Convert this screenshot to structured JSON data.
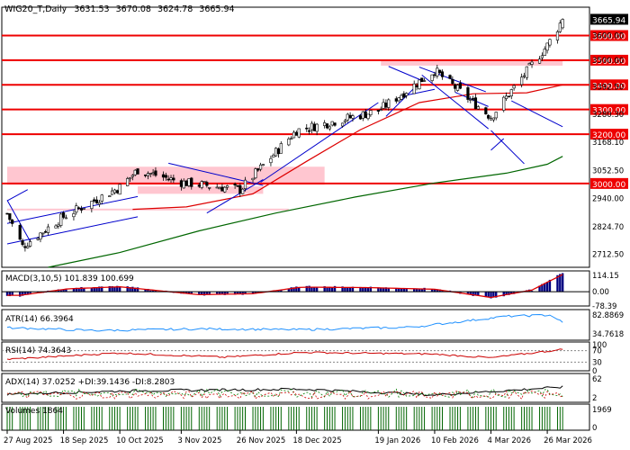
{
  "header": {
    "symbol": "WIG20_T",
    "timeframe": "Daily",
    "ohlc": [
      "3631.53",
      "3670.08",
      "3624.78",
      "3665.94"
    ]
  },
  "colors": {
    "grid": "#dddddd",
    "level_line": "#ee0000",
    "level_label_bg": "#ee0000",
    "last_price_bg": "#000000",
    "zone_fill": "#ffc0cb",
    "trend_line": "#0000cc",
    "ma_red": "#dd0000",
    "ma_green": "#006600",
    "macd_hist": "#000080",
    "atr": "#1e90ff",
    "rsi": "#cc0000",
    "adx": "#000000",
    "di_plus": "#008000",
    "di_minus": "#cc0000",
    "volume": "#006400"
  },
  "chart_data": [
    {
      "type": "candlestick",
      "panel": "price",
      "title": "WIG20_T,Daily",
      "ylim": [
        2660,
        3715
      ],
      "y_ticks": [
        2712.5,
        2824.7,
        2940.0,
        3052.5,
        3168.1,
        3280.3,
        3392.5,
        3500.0,
        3600.0
      ],
      "y_tick_labels": [
        "2712.50",
        "2824.70",
        "2940.00",
        "3052.50",
        "3168.10",
        "3280.30",
        "3392.50",
        "3500.00",
        "3600.00"
      ],
      "x_labels": [
        "27 Aug 2025",
        "18 Sep 2025",
        "10 Oct 2025",
        "3 Nov 2025",
        "26 Nov 2025",
        "18 Dec 2025",
        "19 Jan 2026",
        "10 Feb 2026",
        "4 Mar 2026",
        "26 Mar 2026"
      ],
      "x_label_dates": [
        "2025-08-27",
        "2025-09-18",
        "2025-10-10",
        "2025-11-03",
        "2025-11-26",
        "2025-12-18",
        "2026-01-19",
        "2026-02-10",
        "2026-03-04",
        "2026-03-26"
      ],
      "last_price": 3665.94,
      "last_price_label": "3665.94",
      "level_lines": [
        {
          "value": 3600,
          "label": "3600.00"
        },
        {
          "value": 3500,
          "label": "3500.00"
        },
        {
          "value": 3400,
          "label": "3400.00"
        },
        {
          "value": 3300,
          "label": "3300.00"
        },
        {
          "value": 3200,
          "label": "3200.00"
        },
        {
          "value": 3000,
          "label": "3000.00"
        }
      ],
      "zones": [
        {
          "from_date": "2025-08-27",
          "to_date": "2025-12-29",
          "low": 2995,
          "high": 3068
        },
        {
          "from_date": "2026-01-20",
          "to_date": "2026-04-01",
          "low": 3478,
          "high": 3502
        },
        {
          "from_date": "2025-10-17",
          "to_date": "2025-12-05",
          "low": 2958,
          "high": 2988
        },
        {
          "from_date": "2025-08-27",
          "to_date": "2025-12-15",
          "low": 2893,
          "high": 2898
        }
      ],
      "trend_lines": [
        {
          "points": [
            [
              "2025-08-27",
              2930
            ],
            [
              "2025-09-04",
              2975
            ]
          ]
        },
        {
          "points": [
            [
              "2025-08-27",
              2932
            ],
            [
              "2025-09-05",
              2765
            ]
          ]
        },
        {
          "points": [
            [
              "2025-08-27",
              2755
            ],
            [
              "2025-10-17",
              2865
            ]
          ]
        },
        {
          "points": [
            [
              "2025-08-27",
              2838
            ],
            [
              "2025-10-17",
              2947
            ]
          ]
        },
        {
          "points": [
            [
              "2025-10-29",
              3082
            ],
            [
              "2025-12-05",
              2992
            ]
          ]
        },
        {
          "points": [
            [
              "2025-11-13",
              2880
            ],
            [
              "2025-12-05",
              3016
            ]
          ]
        },
        {
          "points": [
            [
              "2025-12-04",
              3005
            ],
            [
              "2026-01-19",
              3328
            ]
          ]
        },
        {
          "points": [
            [
              "2026-01-22",
              3272
            ],
            [
              "2026-02-02",
              3387
            ]
          ]
        },
        {
          "points": [
            [
              "2026-01-23",
              3475
            ],
            [
              "2026-02-05",
              3418
            ]
          ]
        },
        {
          "points": [
            [
              "2026-01-30",
              3358
            ],
            [
              "2026-02-10",
              3382
            ]
          ]
        },
        {
          "points": [
            [
              "2026-02-04",
              3472
            ],
            [
              "2026-03-02",
              3372
            ]
          ]
        },
        {
          "points": [
            [
              "2026-02-05",
              3440
            ],
            [
              "2026-03-03",
              3222
            ]
          ]
        },
        {
          "points": [
            [
              "2026-02-18",
              3370
            ],
            [
              "2026-03-03",
              3312
            ]
          ]
        },
        {
          "points": [
            [
              "2026-03-04",
              3215
            ],
            [
              "2026-03-17",
              3080
            ]
          ]
        },
        {
          "points": [
            [
              "2026-03-04",
              3135
            ],
            [
              "2026-03-09",
              3182
            ]
          ]
        },
        {
          "points": [
            [
              "2026-03-12",
              3335
            ],
            [
              "2026-04-01",
              3230
            ]
          ]
        }
      ],
      "moving_averages": [
        {
          "color_key": "ma_red",
          "points": [
            [
              "2025-10-15",
              2895
            ],
            [
              "2025-11-05",
              2905
            ],
            [
              "2025-12-01",
              2958
            ],
            [
              "2025-12-22",
              3090
            ],
            [
              "2026-01-12",
              3218
            ],
            [
              "2026-02-04",
              3328
            ],
            [
              "2026-02-25",
              3364
            ],
            [
              "2026-03-18",
              3368
            ],
            [
              "2026-04-01",
              3400
            ]
          ]
        },
        {
          "color_key": "ma_green",
          "points": [
            [
              "2025-09-12",
              2660
            ],
            [
              "2025-10-10",
              2720
            ],
            [
              "2025-11-10",
              2808
            ],
            [
              "2025-12-10",
              2880
            ],
            [
              "2026-01-10",
              2945
            ],
            [
              "2026-02-10",
              3002
            ],
            [
              "2026-03-10",
              3042
            ],
            [
              "2026-03-26",
              3078
            ],
            [
              "2026-04-01",
              3110
            ]
          ]
        }
      ],
      "candles_sample": [
        {
          "date": "2025-08-27",
          "open": 2920,
          "high": 2935,
          "low": 2862,
          "close": 2878
        },
        {
          "date": "2025-09-02",
          "open": 2760,
          "high": 2790,
          "low": 2712,
          "close": 2745
        },
        {
          "date": "2025-09-18",
          "open": 2840,
          "high": 2880,
          "low": 2820,
          "close": 2865
        },
        {
          "date": "2025-10-10",
          "open": 2960,
          "high": 2995,
          "low": 2940,
          "close": 2985
        },
        {
          "date": "2025-10-17",
          "open": 3050,
          "high": 3080,
          "low": 3035,
          "close": 3055
        },
        {
          "date": "2025-11-03",
          "open": 3000,
          "high": 3020,
          "low": 2975,
          "close": 3005
        },
        {
          "date": "2025-11-26",
          "open": 2965,
          "high": 2990,
          "low": 2945,
          "close": 2975
        },
        {
          "date": "2025-12-18",
          "open": 3200,
          "high": 3225,
          "low": 3185,
          "close": 3215
        },
        {
          "date": "2026-01-19",
          "open": 3285,
          "high": 3310,
          "low": 3265,
          "close": 3295
        },
        {
          "date": "2026-02-10",
          "open": 3440,
          "high": 3475,
          "low": 3420,
          "close": 3458
        },
        {
          "date": "2026-03-04",
          "open": 3245,
          "high": 3290,
          "low": 3205,
          "close": 3270
        },
        {
          "date": "2026-03-26",
          "open": 3555,
          "high": 3575,
          "low": 3520,
          "close": 3560
        },
        {
          "date": "2026-04-01",
          "open": 3631.53,
          "high": 3670.08,
          "low": 3624.78,
          "close": 3665.94
        }
      ]
    },
    {
      "type": "histogram",
      "panel": "macd",
      "title": "MACD(3,10,5) 101.839 100.699",
      "y_tick_labels": [
        "114.15",
        "0.00",
        "-78.39"
      ],
      "ylim": [
        -78.39,
        114.15
      ],
      "values_sample": [
        [
          "2025-09-01",
          -22
        ],
        [
          "2025-09-20",
          18
        ],
        [
          "2025-10-10",
          30
        ],
        [
          "2025-11-10",
          -18
        ],
        [
          "2025-12-01",
          -12
        ],
        [
          "2025-12-20",
          28
        ],
        [
          "2026-01-15",
          25
        ],
        [
          "2026-02-10",
          15
        ],
        [
          "2026-03-04",
          -35
        ],
        [
          "2026-03-20",
          10
        ],
        [
          "2026-04-01",
          105
        ]
      ]
    },
    {
      "type": "line",
      "panel": "atr",
      "title": "ATR(14) 66.3964",
      "y_tick_labels": [
        "82.8869",
        "34.7618"
      ],
      "ylim": [
        25,
        98
      ],
      "values_sample": [
        [
          "2025-08-27",
          55
        ],
        [
          "2025-10-01",
          48
        ],
        [
          "2025-11-10",
          52
        ],
        [
          "2025-12-20",
          50
        ],
        [
          "2026-02-01",
          56
        ],
        [
          "2026-03-10",
          82
        ],
        [
          "2026-03-28",
          85
        ],
        [
          "2026-04-01",
          66.3964
        ]
      ]
    },
    {
      "type": "line",
      "panel": "rsi",
      "title": "RSI(14) 74.3643",
      "y_tick_labels": [
        "100",
        "70",
        "30",
        "0"
      ],
      "ylim": [
        0,
        100
      ],
      "values_sample": [
        [
          "2025-08-27",
          40
        ],
        [
          "2025-10-10",
          62
        ],
        [
          "2025-11-20",
          47
        ],
        [
          "2025-12-20",
          64
        ],
        [
          "2026-02-10",
          58
        ],
        [
          "2026-03-04",
          45
        ],
        [
          "2026-04-01",
          74.3643
        ]
      ]
    },
    {
      "type": "line",
      "panel": "adx",
      "title": "ADX(14) 37.0252 +DI:39.1436 -DI:8.2803",
      "y_tick_labels": [
        "62",
        "2"
      ],
      "ylim": [
        0,
        70
      ],
      "values_sample": [
        [
          "2025-08-27",
          20
        ],
        [
          "2025-10-15",
          28
        ],
        [
          "2025-12-20",
          32
        ],
        [
          "2026-02-10",
          18
        ],
        [
          "2026-04-01",
          37.0252
        ]
      ]
    },
    {
      "type": "bar",
      "panel": "volume",
      "title": "Volumes 1864",
      "y_tick_labels": [
        "1969",
        "0"
      ],
      "ylim": [
        0,
        1969
      ]
    }
  ]
}
